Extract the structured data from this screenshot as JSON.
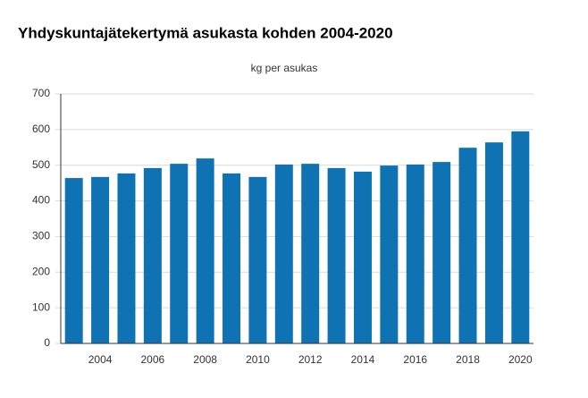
{
  "chart_data": {
    "type": "bar",
    "title": "Yhdyskuntajätekertymä asukasta kohden 2004-2020",
    "subtitle": "kg per asukas",
    "categories": [
      null,
      "2004",
      null,
      "2006",
      null,
      "2008",
      null,
      "2010",
      null,
      "2012",
      null,
      "2014",
      null,
      "2016",
      null,
      "2018",
      null,
      "2020"
    ],
    "values": [
      464,
      467,
      477,
      492,
      504,
      519,
      477,
      467,
      502,
      504,
      492,
      482,
      499,
      502,
      509,
      549,
      564,
      595
    ],
    "color": "#0f72b3",
    "ylim": [
      0,
      700
    ],
    "yticks": [
      0,
      100,
      200,
      300,
      400,
      500,
      600,
      700
    ],
    "grid": true
  }
}
